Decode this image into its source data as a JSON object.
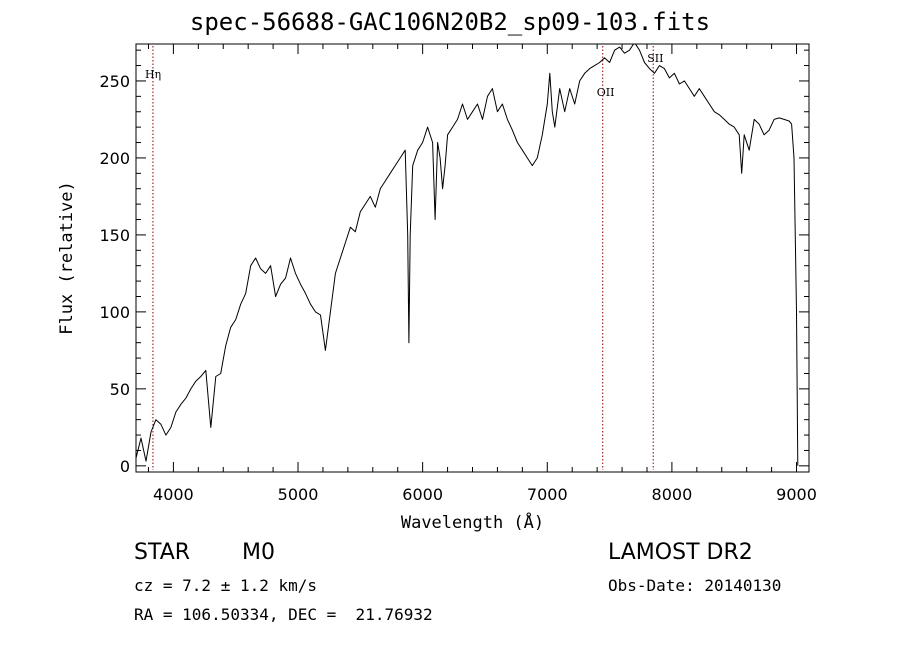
{
  "title": "spec-56688-GAC106N20B2_sp09-103.fits",
  "info": {
    "class": "STAR",
    "subclass": "M0",
    "survey": "LAMOST DR2",
    "cz": "cz = 7.2 ± 1.2 km/s",
    "obs_date": "Obs-Date: 20140130",
    "coords": "RA = 106.50334, DEC =  21.76932"
  },
  "chart_data": {
    "type": "line",
    "title": "spec-56688-GAC106N20B2_sp09-103.fits",
    "xlabel": "Wavelength (Å)",
    "ylabel": "Flux (relative)",
    "xlim": [
      3700,
      9100
    ],
    "ylim": [
      -4,
      274
    ],
    "xticks": [
      4000,
      5000,
      6000,
      7000,
      8000,
      9000
    ],
    "yticks": [
      0,
      50,
      100,
      150,
      200,
      250
    ],
    "grid": false,
    "line_color": "#000000",
    "marker_color": "#8b0000",
    "line_markers": [
      {
        "label": "Hη",
        "x": 3836
      },
      {
        "label": "OII",
        "x": 7445
      },
      {
        "label": "SII",
        "x": 7850
      }
    ],
    "series": [
      {
        "x": [
          3700,
          3740,
          3780,
          3820,
          3860,
          3900,
          3940,
          3980,
          4020,
          4060,
          4100,
          4140,
          4180,
          4220,
          4260,
          4300,
          4340,
          4380,
          4420,
          4460,
          4500,
          4540,
          4580,
          4620,
          4660,
          4700,
          4740,
          4780,
          4820,
          4860,
          4900,
          4940,
          4980,
          5020,
          5060,
          5100,
          5140,
          5180,
          5220,
          5260,
          5300,
          5340,
          5380,
          5420,
          5460,
          5500,
          5540,
          5580,
          5620,
          5660,
          5700,
          5740,
          5780,
          5820,
          5860,
          5880,
          5890,
          5900,
          5920,
          5960,
          6000,
          6040,
          6080,
          6100,
          6120,
          6140,
          6160,
          6180,
          6200,
          6240,
          6280,
          6320,
          6360,
          6400,
          6440,
          6480,
          6520,
          6560,
          6600,
          6640,
          6680,
          6720,
          6760,
          6800,
          6840,
          6880,
          6920,
          6960,
          7000,
          7020,
          7040,
          7060,
          7100,
          7140,
          7180,
          7220,
          7260,
          7300,
          7340,
          7380,
          7420,
          7460,
          7500,
          7540,
          7580,
          7620,
          7660,
          7700,
          7740,
          7780,
          7820,
          7860,
          7900,
          7940,
          7980,
          8020,
          8060,
          8100,
          8140,
          8180,
          8220,
          8260,
          8300,
          8340,
          8380,
          8420,
          8460,
          8500,
          8540,
          8560,
          8580,
          8620,
          8660,
          8700,
          8740,
          8780,
          8820,
          8860,
          8900,
          8940,
          8960,
          8980,
          9000,
          9010
        ],
        "y": [
          5,
          18,
          3,
          22,
          30,
          27,
          20,
          25,
          35,
          40,
          44,
          50,
          55,
          58,
          62,
          25,
          58,
          60,
          78,
          90,
          95,
          105,
          112,
          130,
          135,
          128,
          125,
          130,
          110,
          118,
          122,
          135,
          125,
          118,
          112,
          105,
          100,
          98,
          75,
          100,
          125,
          135,
          145,
          155,
          152,
          165,
          170,
          175,
          168,
          180,
          185,
          190,
          195,
          200,
          205,
          150,
          80,
          150,
          195,
          205,
          210,
          220,
          210,
          160,
          210,
          200,
          180,
          195,
          215,
          220,
          225,
          235,
          225,
          230,
          235,
          225,
          240,
          245,
          230,
          235,
          225,
          218,
          210,
          205,
          200,
          195,
          200,
          215,
          235,
          255,
          230,
          220,
          245,
          230,
          245,
          235,
          250,
          255,
          258,
          260,
          262,
          265,
          262,
          270,
          272,
          268,
          270,
          275,
          270,
          262,
          258,
          255,
          260,
          258,
          252,
          255,
          248,
          250,
          245,
          240,
          245,
          240,
          235,
          230,
          228,
          225,
          222,
          220,
          215,
          190,
          215,
          205,
          225,
          222,
          215,
          218,
          225,
          226,
          225,
          224,
          222,
          200,
          100,
          0
        ]
      }
    ]
  }
}
